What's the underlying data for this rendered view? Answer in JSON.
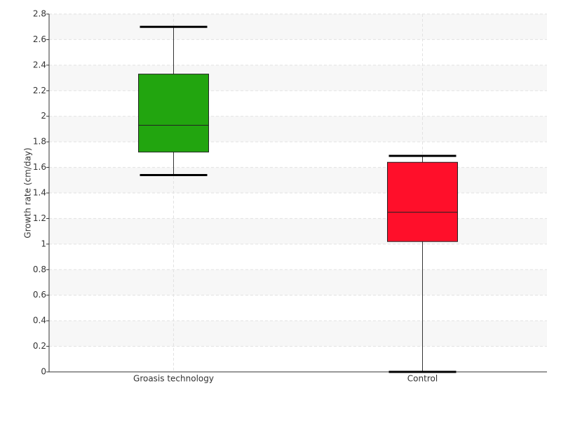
{
  "chart_data": {
    "type": "box",
    "y_label": "Growth rate (cm/day)",
    "categories": [
      "Groasis technology",
      "Control"
    ],
    "boxes": [
      {
        "color": "#22a50f",
        "whislo": 1.54,
        "q1": 1.72,
        "med": 1.93,
        "q3": 2.33,
        "whishi": 2.7
      },
      {
        "color": "#ff0f2a",
        "whislo": 0,
        "q1": 1.02,
        "med": 1.25,
        "q3": 1.64,
        "whishi": 1.69
      }
    ],
    "ylim": [
      0,
      2.8
    ],
    "yticks": [
      0,
      0.2,
      0.4,
      0.6,
      0.8,
      1,
      1.2,
      1.4,
      1.6,
      1.8,
      2,
      2.2,
      2.4,
      2.6,
      2.8
    ],
    "grid": true
  }
}
